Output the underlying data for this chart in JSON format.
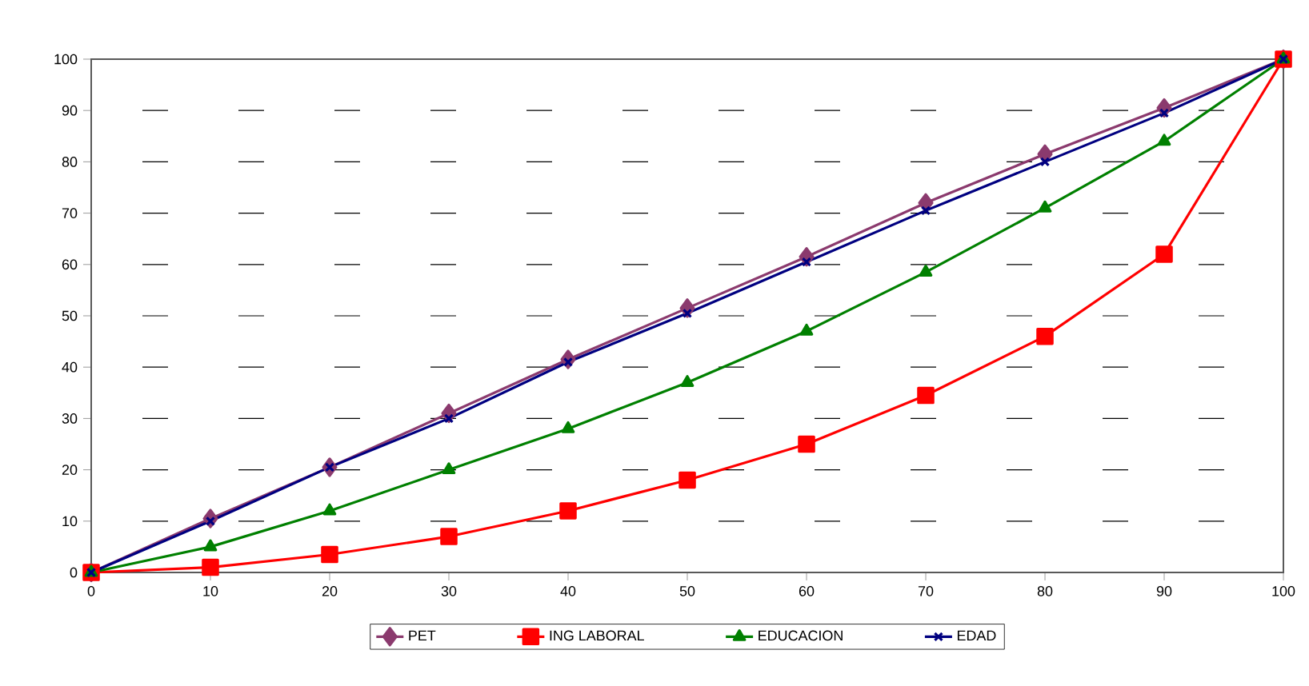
{
  "chart_data": {
    "type": "line",
    "x": [
      0,
      10,
      20,
      30,
      40,
      50,
      60,
      70,
      80,
      90,
      100
    ],
    "series": [
      {
        "name": "PET",
        "color": "#8b3a6e",
        "marker": "diamond",
        "values": [
          0,
          10.5,
          20.5,
          31,
          41.5,
          51.5,
          61.5,
          72,
          81.5,
          90.5,
          100
        ]
      },
      {
        "name": "ING LABORAL",
        "color": "#ff0000",
        "marker": "square",
        "values": [
          0,
          1,
          3.5,
          7,
          12,
          18,
          25,
          34.5,
          46,
          62,
          100
        ]
      },
      {
        "name": "EDUCACION",
        "color": "#008000",
        "marker": "triangle",
        "values": [
          0,
          5,
          12,
          20,
          28,
          37,
          47,
          58.5,
          71,
          84,
          100
        ]
      },
      {
        "name": "EDAD",
        "color": "#000080",
        "marker": "cross",
        "values": [
          0,
          10,
          20.5,
          30,
          41,
          50.5,
          60.5,
          70.5,
          80,
          89.5,
          100
        ]
      }
    ],
    "xlim": [
      0,
      100
    ],
    "ylim": [
      0,
      100
    ],
    "xticks": [
      0,
      10,
      20,
      30,
      40,
      50,
      60,
      70,
      80,
      90,
      100
    ],
    "yticks": [
      0,
      10,
      20,
      30,
      40,
      50,
      60,
      70,
      80,
      90,
      100
    ],
    "grid": "y",
    "legend": "bottom",
    "line_style": "solid"
  }
}
